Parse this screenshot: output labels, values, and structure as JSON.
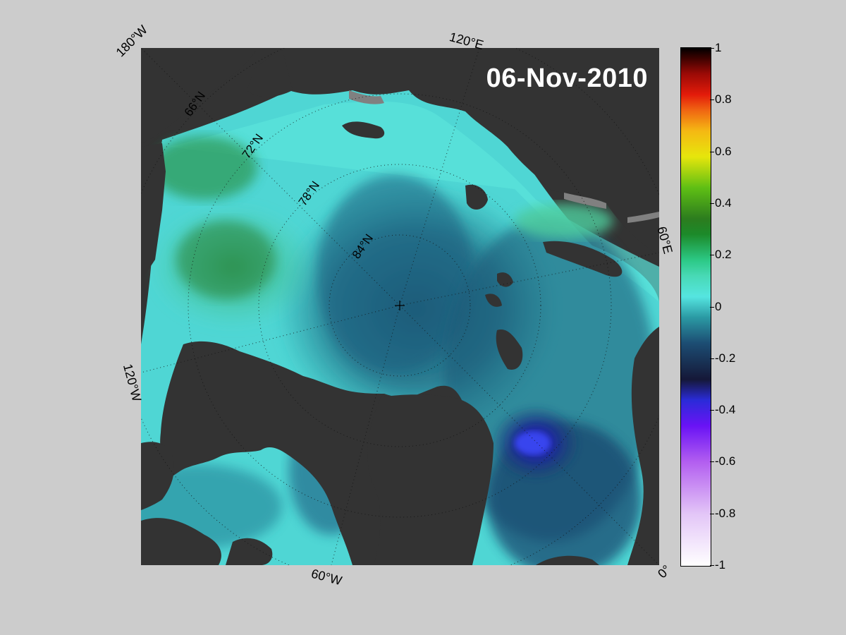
{
  "map": {
    "date": "06-Nov-2010",
    "meridian_labels": [
      "180°W",
      "120°E",
      "60°E",
      "0°",
      "60°W",
      "120°W"
    ],
    "latitude_labels": [
      "66°N",
      "72°N",
      "78°N",
      "84°N"
    ]
  },
  "colorbar": {
    "ticks": [
      "1",
      "0.8",
      "0.6",
      "0.4",
      "0.2",
      "0",
      "-0.2",
      "-0.4",
      "-0.6",
      "-0.8",
      "-1"
    ],
    "range": [
      -1,
      1
    ],
    "colors": {
      "max": "#000000",
      "high_red": "#e31b0a",
      "orange": "#f06512",
      "yellow": "#e6e60c",
      "green": "#2c7c1e",
      "zero": "#2cc986",
      "cyan": "#55e5e0",
      "teal": "#2b9aa4",
      "dark_blue": "#151838",
      "blue": "#2a2bd8",
      "violet": "#6a13f5",
      "lavender": "#e3c6f7",
      "min": "#ffffff"
    }
  },
  "map_colors": {
    "land": "#333333",
    "land_edge": "#808080"
  }
}
